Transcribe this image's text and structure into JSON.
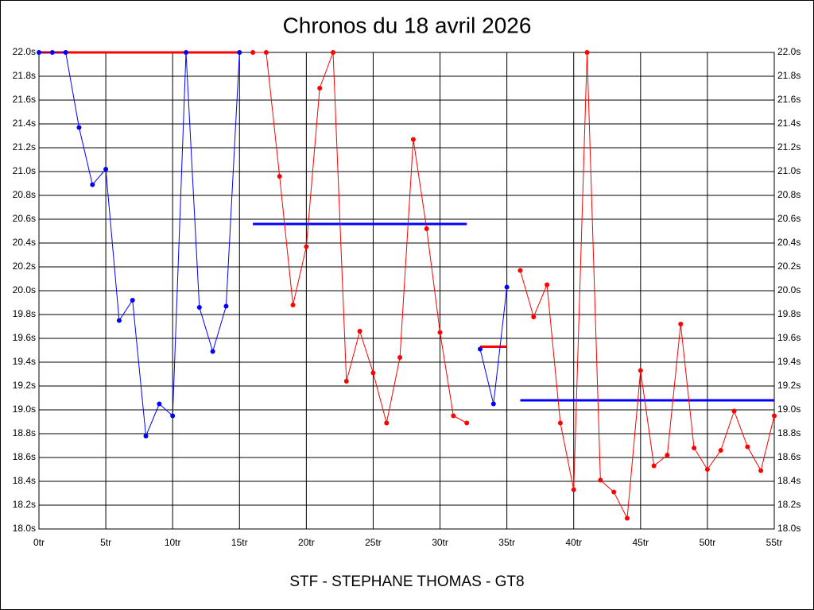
{
  "chart_data": {
    "type": "line",
    "title": "Chronos du 18 avril 2026",
    "xlabel": "STF - STEPHANE THOMAS - GT8",
    "xlim": [
      0,
      55
    ],
    "xticks": [
      {
        "value": 0,
        "label": "0tr"
      },
      {
        "value": 5,
        "label": "5tr"
      },
      {
        "value": 10,
        "label": "10tr"
      },
      {
        "value": 15,
        "label": "15tr"
      },
      {
        "value": 20,
        "label": "20tr"
      },
      {
        "value": 25,
        "label": "25tr"
      },
      {
        "value": 30,
        "label": "30tr"
      },
      {
        "value": 35,
        "label": "35tr"
      },
      {
        "value": 40,
        "label": "40tr"
      },
      {
        "value": 45,
        "label": "45tr"
      },
      {
        "value": 50,
        "label": "50tr"
      },
      {
        "value": 55,
        "label": "55tr"
      }
    ],
    "ylim": [
      18.0,
      22.0
    ],
    "yticks": [
      {
        "value": 18.0,
        "label": "18.0s"
      },
      {
        "value": 18.2,
        "label": "18.2s"
      },
      {
        "value": 18.4,
        "label": "18.4s"
      },
      {
        "value": 18.6,
        "label": "18.6s"
      },
      {
        "value": 18.8,
        "label": "18.8s"
      },
      {
        "value": 19.0,
        "label": "19.0s"
      },
      {
        "value": 19.2,
        "label": "19.2s"
      },
      {
        "value": 19.4,
        "label": "19.4s"
      },
      {
        "value": 19.6,
        "label": "19.6s"
      },
      {
        "value": 19.8,
        "label": "19.8s"
      },
      {
        "value": 20.0,
        "label": "20.0s"
      },
      {
        "value": 20.2,
        "label": "20.2s"
      },
      {
        "value": 20.4,
        "label": "20.4s"
      },
      {
        "value": 20.6,
        "label": "20.6s"
      },
      {
        "value": 20.8,
        "label": "20.8s"
      },
      {
        "value": 21.0,
        "label": "21.0s"
      },
      {
        "value": 21.2,
        "label": "21.2s"
      },
      {
        "value": 21.4,
        "label": "21.4s"
      },
      {
        "value": 21.6,
        "label": "21.6s"
      },
      {
        "value": 21.8,
        "label": "21.8s"
      },
      {
        "value": 22.0,
        "label": "22.0s"
      }
    ],
    "grid": true,
    "series": [
      {
        "color": "#0000ff",
        "x": [
          0,
          1,
          2,
          3,
          4,
          5,
          6,
          7,
          8,
          9,
          10,
          11,
          12,
          13,
          14,
          15
        ],
        "values": [
          22.0,
          22.0,
          22.0,
          21.37,
          20.89,
          21.02,
          19.75,
          19.92,
          18.78,
          19.05,
          18.95,
          22.0,
          19.86,
          19.49,
          19.87,
          22.0
        ]
      },
      {
        "color": "#ff0000",
        "x": [
          16,
          17,
          18,
          19,
          20,
          21,
          22,
          23,
          24,
          25,
          26,
          27,
          28,
          29,
          30,
          31,
          32
        ],
        "values": [
          22.0,
          22.0,
          20.96,
          19.88,
          20.37,
          21.7,
          22.0,
          19.24,
          19.66,
          19.31,
          18.89,
          19.44,
          21.27,
          20.52,
          19.65,
          18.95,
          18.89
        ]
      },
      {
        "color": "#0000ff",
        "x": [
          33,
          34,
          35
        ],
        "values": [
          19.51,
          19.05,
          20.03
        ]
      },
      {
        "color": "#ff0000",
        "x": [
          36,
          37,
          38,
          39,
          40,
          41,
          42,
          43,
          44,
          45,
          46,
          47,
          48,
          49,
          50,
          51,
          52,
          53,
          54,
          55
        ],
        "values": [
          20.17,
          19.78,
          20.05,
          18.89,
          18.33,
          22.0,
          18.41,
          18.31,
          18.09,
          19.33,
          18.53,
          18.62,
          19.72,
          18.68,
          18.5,
          18.66,
          18.99,
          18.69,
          18.49,
          18.95
        ]
      }
    ],
    "averages": [
      {
        "color": "#ff0000",
        "x": [
          0,
          15
        ],
        "value": 22.0
      },
      {
        "color": "#0000ff",
        "x": [
          16,
          32
        ],
        "value": 20.56
      },
      {
        "color": "#ff0000",
        "x": [
          33,
          35
        ],
        "value": 19.53
      },
      {
        "color": "#0000ff",
        "x": [
          36,
          55
        ],
        "value": 19.08
      }
    ]
  }
}
